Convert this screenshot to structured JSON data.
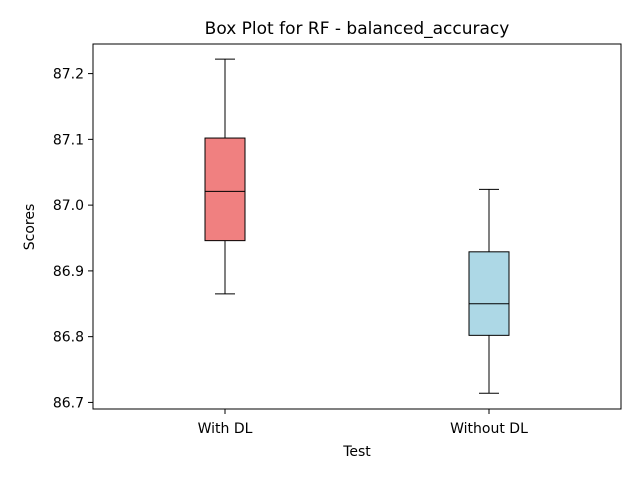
{
  "chart_data": {
    "type": "box",
    "title": "Box Plot for RF - balanced_accuracy",
    "xlabel": "Test",
    "ylabel": "Scores",
    "ylim": [
      86.69,
      87.245
    ],
    "yticks": [
      86.7,
      86.8,
      86.9,
      87.0,
      87.1,
      87.2
    ],
    "ytick_labels": [
      "86.7",
      "86.8",
      "86.9",
      "87.0",
      "87.1",
      "87.2"
    ],
    "grid": false,
    "categories": [
      "With DL",
      "Without DL"
    ],
    "boxes": [
      {
        "category": "With DL",
        "whisker_low": 86.865,
        "q1": 86.946,
        "median": 87.021,
        "q3": 87.102,
        "whisker_high": 87.222,
        "color": "#f08080"
      },
      {
        "category": "Without DL",
        "whisker_low": 86.714,
        "q1": 86.802,
        "median": 86.85,
        "q3": 86.929,
        "whisker_high": 87.024,
        "color": "#add8e6"
      }
    ]
  }
}
